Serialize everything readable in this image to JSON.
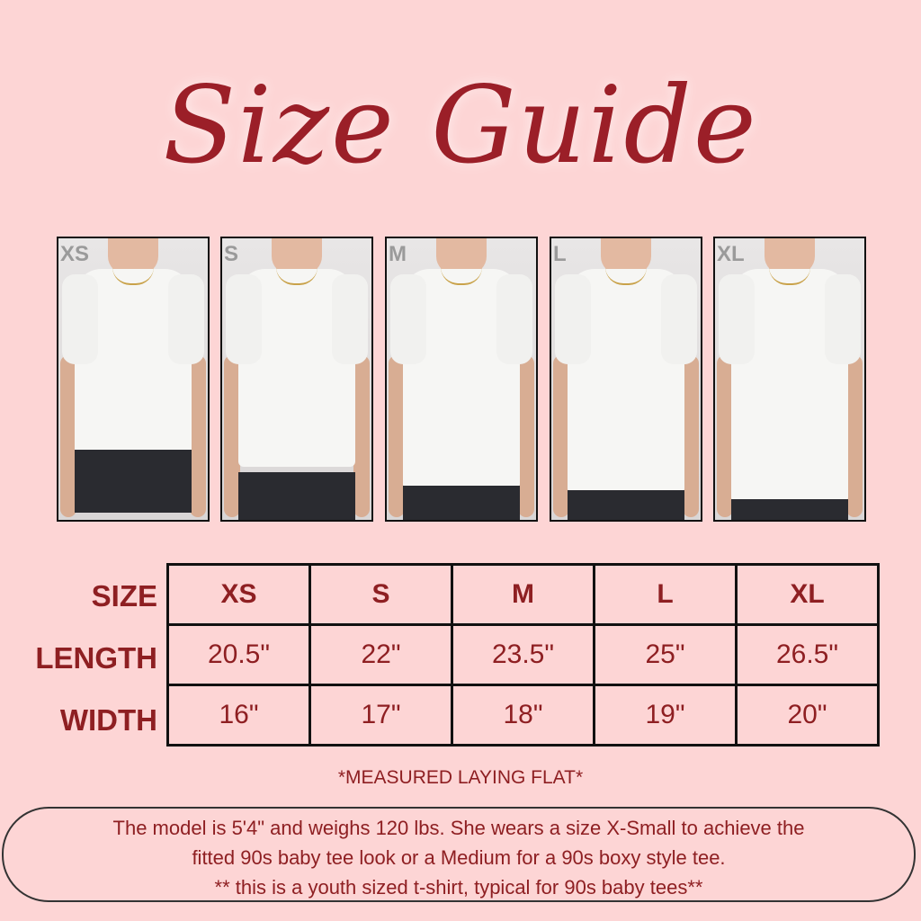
{
  "title": "Size Guide",
  "photos": [
    "XS",
    "S",
    "M",
    "L",
    "XL"
  ],
  "table": {
    "row_labels": [
      "SIZE",
      "LENGTH",
      "WIDTH"
    ],
    "sizes": [
      "XS",
      "S",
      "M",
      "L",
      "XL"
    ],
    "length": [
      "20.5\"",
      "22\"",
      "23.5\"",
      "25\"",
      "26.5\""
    ],
    "width": [
      "16\"",
      "17\"",
      "18\"",
      "19\"",
      "20\""
    ]
  },
  "note": "*MEASURED LAYING FLAT*",
  "model_info": {
    "line1": "The model is 5'4\" and weighs 120 lbs. She wears a size X-Small to achieve the",
    "line2": "fitted 90s baby tee look or a Medium for a 90s boxy style tee.",
    "line3": "** this is a youth sized t-shirt, typical for 90s baby tees**"
  },
  "colors": {
    "background": "#fdd5d5",
    "text": "#8e1f22"
  }
}
